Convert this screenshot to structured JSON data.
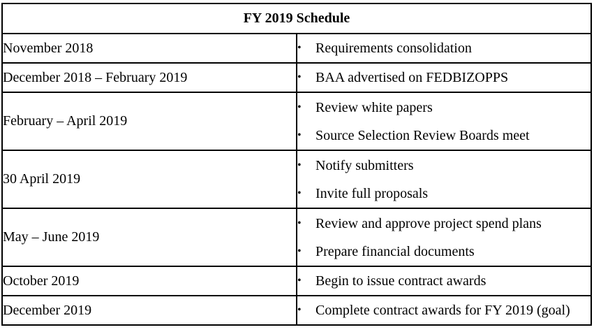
{
  "title": "FY 2019 Schedule",
  "bullet_glyph": "•",
  "rows": [
    {
      "date": "November 2018",
      "tasks": [
        "Requirements consolidation"
      ]
    },
    {
      "date": "December 2018 – February 2019",
      "tasks": [
        "BAA advertised on FEDBIZOPPS"
      ]
    },
    {
      "date": "February – April 2019",
      "tasks": [
        "Review white papers",
        "Source Selection Review Boards meet"
      ]
    },
    {
      "date": "30 April 2019",
      "tasks": [
        "Notify submitters",
        "Invite full proposals"
      ]
    },
    {
      "date": "May – June 2019",
      "tasks": [
        "Review and approve project spend plans",
        "Prepare financial documents"
      ]
    },
    {
      "date": "October 2019",
      "tasks": [
        "Begin to issue contract awards"
      ]
    },
    {
      "date": "December 2019",
      "tasks": [
        "Complete contract awards for FY 2019 (goal)"
      ]
    }
  ]
}
